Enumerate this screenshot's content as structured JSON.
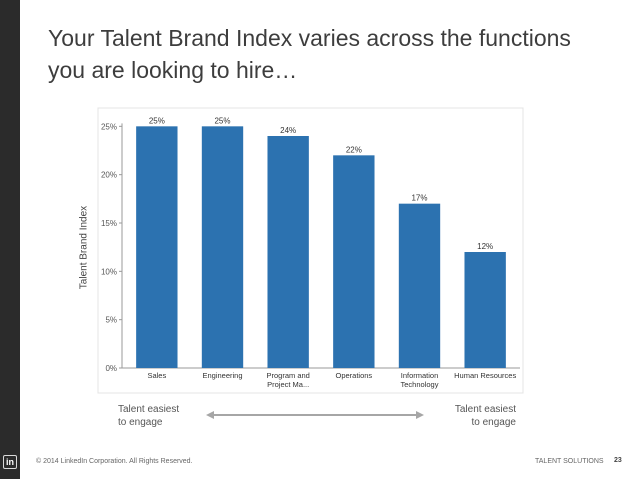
{
  "title_line1": "Your Talent Brand Index varies across the functions",
  "title_line2": "you are looking to hire…",
  "engage_left_line1": "Talent easiest",
  "engage_left_line2": "to engage",
  "engage_right_line1": "Talent easiest",
  "engage_right_line2": "to engage",
  "footer_copyright": "© 2014 LinkedIn Corporation. All Rights Reserved.",
  "footer_brand": "TALENT SOLUTIONS",
  "page_number": "23",
  "logo_text": "in",
  "colors": {
    "bar": "#2c72b0",
    "arrow": "#a6a6a6",
    "sidebar": "#2b2b2b"
  },
  "chart_data": {
    "type": "bar",
    "ylabel": "Talent Brand Index",
    "ylim": [
      0,
      27
    ],
    "yticks": [
      "0%",
      "5%",
      "10%",
      "15%",
      "20%",
      "25%"
    ],
    "ytick_values": [
      0,
      5,
      10,
      15,
      20,
      25
    ],
    "categories": [
      [
        "Sales"
      ],
      [
        "Engineering"
      ],
      [
        "Program and",
        "Project Ma..."
      ],
      [
        "Operations"
      ],
      [
        "Information",
        "Technology"
      ],
      [
        "Human Resources"
      ]
    ],
    "values": [
      25,
      25,
      24,
      22,
      17,
      12
    ],
    "data_labels": [
      "25%",
      "25%",
      "24%",
      "22%",
      "17%",
      "12%"
    ],
    "grid": false
  }
}
